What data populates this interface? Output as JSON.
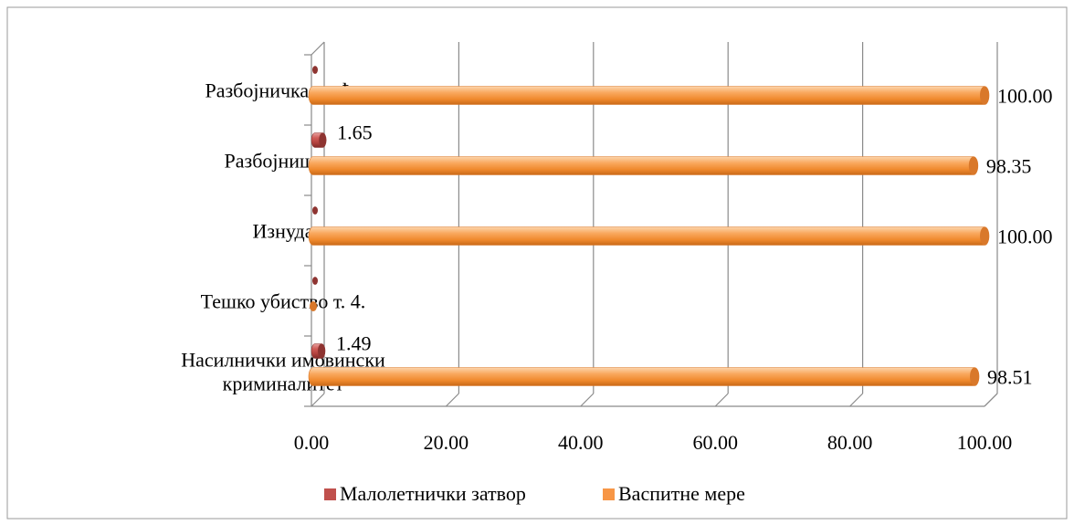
{
  "chart_data": {
    "type": "bar",
    "orientation": "horizontal",
    "style": "3d-cylinder",
    "categories": [
      [
        "Насилнички имовински",
        "криминалитет"
      ],
      [
        "Тешко убиство т. 4."
      ],
      [
        "Изнуда"
      ],
      [
        "Разбојништва"
      ],
      [
        "Разбојничка крађа"
      ]
    ],
    "series": [
      {
        "name": "Малолетнички затвор",
        "color": "#c0504d",
        "values": [
          1.49,
          0,
          0,
          1.65,
          0
        ],
        "labels": [
          "1.49",
          "",
          "",
          "1.65",
          ""
        ]
      },
      {
        "name": "Васпитне мере",
        "color": "#f79646",
        "values": [
          98.51,
          0,
          100.0,
          98.35,
          100.0
        ],
        "labels": [
          "98.51",
          "",
          "100.00",
          "98.35",
          "100.00"
        ]
      }
    ],
    "xlim": [
      0,
      100
    ],
    "xticks": [
      "0.00",
      "20.00",
      "40.00",
      "60.00",
      "80.00",
      "100.00"
    ],
    "grid": true,
    "legend_position": "bottom"
  }
}
